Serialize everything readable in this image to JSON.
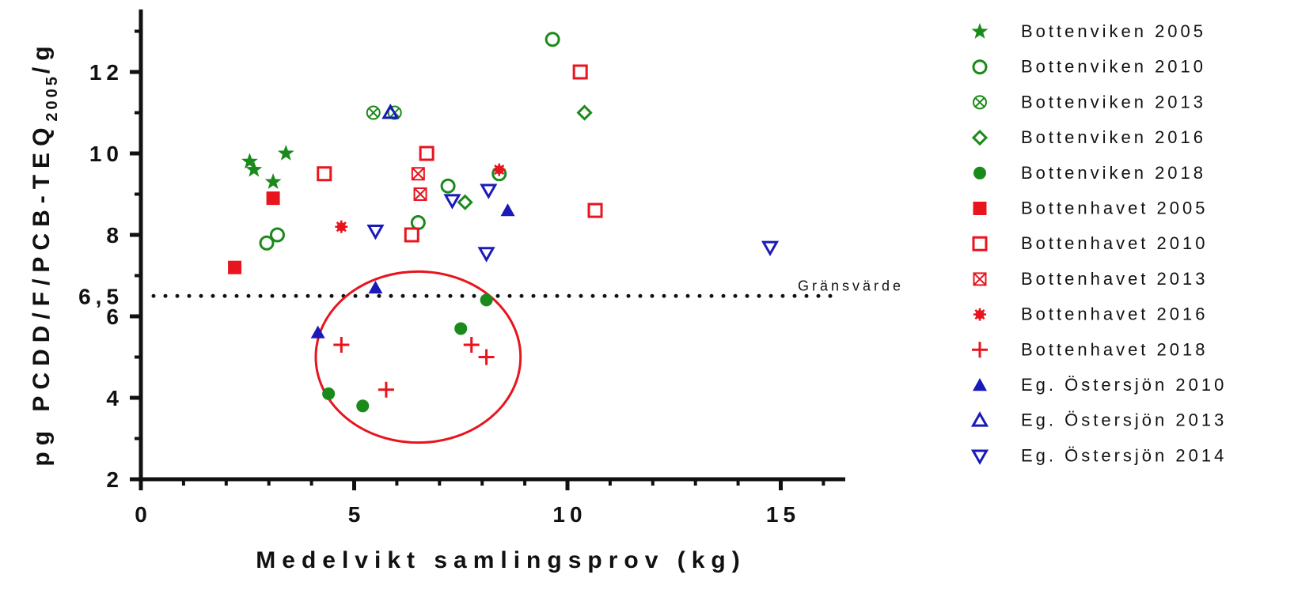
{
  "chart_data": {
    "type": "scatter",
    "xlabel": "Medelvikt samlingsprov (kg)",
    "ylabel_main": "pg PCDD/F/PCB-TEQ",
    "ylabel_sub": "2005",
    "ylabel_tail": "/g",
    "xlim": [
      0,
      16.5
    ],
    "ylim": [
      2,
      14
    ],
    "x_ticks": [
      0,
      5,
      10,
      15
    ],
    "y_ticks": [
      2,
      4,
      6,
      8,
      10,
      12
    ],
    "x_tick_labels": [
      "0",
      "5",
      "10",
      "15"
    ],
    "y_tick_labels": [
      "2",
      "4",
      "6",
      "8",
      "10",
      "12"
    ],
    "extra_y_tick_label": "6,5",
    "reference_line": {
      "y": 6.5,
      "label": "Gränsvärde",
      "style": "dotted"
    },
    "highlight_ellipse": {
      "center": [
        6.5,
        5.0
      ],
      "radius": [
        2.4,
        2.1
      ],
      "color": "#e8141e"
    },
    "legend_position": "right",
    "series": [
      {
        "name": "Bottenviken 2005",
        "marker": "star",
        "color": "#1a8a1a",
        "points": [
          [
            2.55,
            9.8
          ],
          [
            2.65,
            9.6
          ],
          [
            3.1,
            9.3
          ],
          [
            3.4,
            10.0
          ]
        ]
      },
      {
        "name": "Bottenviken 2010",
        "marker": "circle-open",
        "color": "#1a8a1a",
        "points": [
          [
            2.95,
            7.8
          ],
          [
            3.2,
            8.0
          ],
          [
            6.5,
            8.3
          ],
          [
            7.2,
            9.2
          ],
          [
            8.4,
            9.5
          ],
          [
            9.65,
            12.8
          ]
        ]
      },
      {
        "name": "Bottenviken 2013",
        "marker": "circle-x",
        "color": "#1a8a1a",
        "points": [
          [
            5.45,
            11.0
          ],
          [
            5.95,
            11.0
          ]
        ]
      },
      {
        "name": "Bottenviken 2016",
        "marker": "diamond-open",
        "color": "#1a8a1a",
        "points": [
          [
            7.6,
            8.8
          ],
          [
            10.4,
            11.0
          ]
        ]
      },
      {
        "name": "Bottenviken 2018",
        "marker": "circle-filled",
        "color": "#1a8a1a",
        "points": [
          [
            4.4,
            4.1
          ],
          [
            5.2,
            3.8
          ],
          [
            7.5,
            5.7
          ],
          [
            8.1,
            6.4
          ]
        ]
      },
      {
        "name": "Bottenhavet 2005",
        "marker": "square-filled",
        "color": "#e8141e",
        "points": [
          [
            2.2,
            7.2
          ],
          [
            3.1,
            8.9
          ]
        ]
      },
      {
        "name": "Bottenhavet 2010",
        "marker": "square-open",
        "color": "#e8141e",
        "points": [
          [
            4.3,
            9.5
          ],
          [
            6.35,
            8.0
          ],
          [
            6.7,
            10.0
          ],
          [
            10.3,
            12.0
          ],
          [
            10.65,
            8.6
          ]
        ]
      },
      {
        "name": "Bottenhavet 2013",
        "marker": "square-x",
        "color": "#e8141e",
        "points": [
          [
            6.5,
            9.5
          ],
          [
            6.55,
            9.0
          ]
        ]
      },
      {
        "name": "Bottenhavet 2016",
        "marker": "burst",
        "color": "#e8141e",
        "points": [
          [
            4.7,
            8.2
          ],
          [
            8.4,
            9.6
          ]
        ]
      },
      {
        "name": "Bottenhavet 2018",
        "marker": "plus",
        "color": "#e8141e",
        "points": [
          [
            4.7,
            5.3
          ],
          [
            5.75,
            4.2
          ],
          [
            7.75,
            5.3
          ],
          [
            8.1,
            5.0
          ]
        ]
      },
      {
        "name": "Eg. Östersjön 2010",
        "marker": "triangle-up-filled",
        "color": "#1a1aba",
        "points": [
          [
            4.15,
            5.6
          ],
          [
            5.5,
            6.7
          ],
          [
            8.6,
            8.6
          ]
        ]
      },
      {
        "name": "Eg. Östersjön 2013",
        "marker": "triangle-up-open",
        "color": "#1a1aba",
        "points": [
          [
            5.85,
            11.0
          ]
        ]
      },
      {
        "name": "Eg. Östersjön 2014",
        "marker": "triangle-down-open",
        "color": "#1a1aba",
        "points": [
          [
            5.5,
            8.1
          ],
          [
            7.3,
            8.85
          ],
          [
            8.1,
            7.55
          ],
          [
            8.15,
            9.1
          ],
          [
            14.75,
            7.7
          ]
        ]
      }
    ]
  }
}
